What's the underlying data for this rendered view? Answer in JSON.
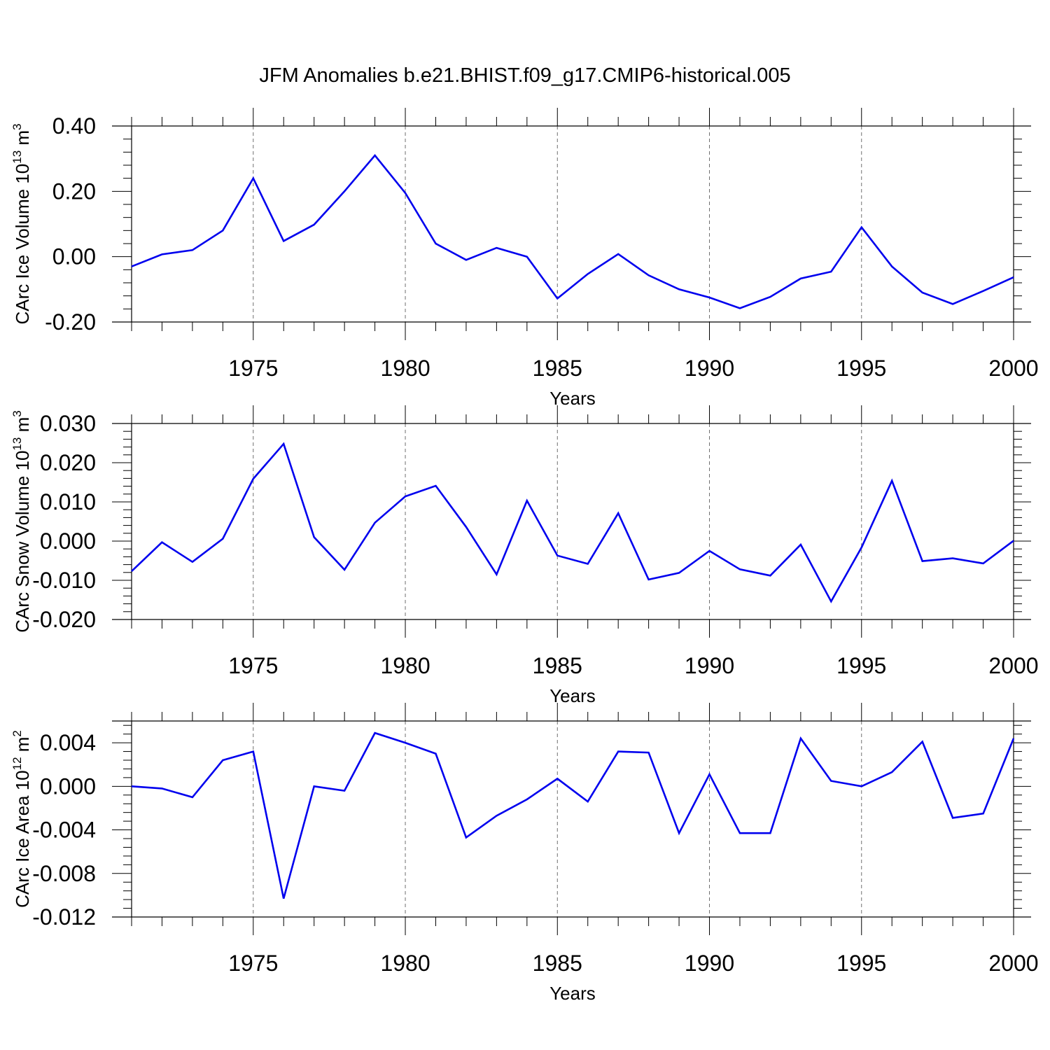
{
  "title": "JFM Anomalies b.e21.BHIST.f09_g17.CMIP6-historical.005",
  "chart_data": [
    {
      "type": "line",
      "ylabel": {
        "text": "CArc Ice Volume 10",
        "exp": "13",
        "unit": " m",
        "unit_exp": "3"
      },
      "xlabel": "Years",
      "ylim": [
        -0.2,
        0.4
      ],
      "yticks": [
        -0.2,
        0.0,
        0.2,
        0.4
      ],
      "ytick_labels": [
        "-0.20",
        "0.00",
        "0.20",
        "0.40"
      ],
      "xlim": [
        1971,
        2000
      ],
      "xticks": [
        1975,
        1980,
        1985,
        1990,
        1995,
        2000
      ],
      "xtick_labels": [
        "1975",
        "1980",
        "1985",
        "1990",
        "1995",
        "2000"
      ],
      "grid": "dashed vertical at major x ticks",
      "series": [
        {
          "name": "CArc Ice Volume",
          "color": "#0000ee",
          "x": [
            1971,
            1972,
            1973,
            1974,
            1975,
            1976,
            1977,
            1978,
            1979,
            1980,
            1981,
            1982,
            1983,
            1984,
            1985,
            1986,
            1987,
            1988,
            1989,
            1990,
            1991,
            1992,
            1993,
            1994,
            1995,
            1996,
            1997,
            1998,
            1999,
            2000
          ],
          "values": [
            -0.03,
            0.007,
            0.02,
            0.08,
            0.24,
            0.048,
            0.098,
            0.2,
            0.31,
            0.195,
            0.04,
            -0.01,
            0.027,
            0.0,
            -0.128,
            -0.053,
            0.008,
            -0.057,
            -0.1,
            -0.125,
            -0.158,
            -0.123,
            -0.067,
            -0.046,
            0.09,
            -0.03,
            -0.11,
            -0.145,
            -0.105,
            -0.063
          ]
        }
      ]
    },
    {
      "type": "line",
      "ylabel": {
        "text": "CArc Snow Volume 10",
        "exp": "13",
        "unit": " m",
        "unit_exp": "3"
      },
      "xlabel": "Years",
      "ylim": [
        -0.02,
        0.03
      ],
      "yticks": [
        -0.02,
        -0.01,
        0.0,
        0.01,
        0.02,
        0.03
      ],
      "ytick_labels": [
        "-0.020",
        "-0.010",
        "0.000",
        "0.010",
        "0.020",
        "0.030"
      ],
      "xlim": [
        1971,
        2000
      ],
      "xticks": [
        1975,
        1980,
        1985,
        1990,
        1995,
        2000
      ],
      "xtick_labels": [
        "1975",
        "1980",
        "1985",
        "1990",
        "1995",
        "2000"
      ],
      "grid": "dashed vertical at major x ticks",
      "series": [
        {
          "name": "CArc Snow Volume",
          "color": "#0000ee",
          "x": [
            1971,
            1972,
            1973,
            1974,
            1975,
            1976,
            1977,
            1978,
            1979,
            1980,
            1981,
            1982,
            1983,
            1984,
            1985,
            1986,
            1987,
            1988,
            1989,
            1990,
            1991,
            1992,
            1993,
            1994,
            1995,
            1996,
            1997,
            1998,
            1999,
            2000
          ],
          "values": [
            -0.0077,
            -0.0003,
            -0.0053,
            0.0006,
            0.0159,
            0.0248,
            0.001,
            -0.0073,
            0.0047,
            0.0114,
            0.0141,
            0.0036,
            -0.0085,
            0.0103,
            -0.0037,
            -0.0058,
            0.0071,
            -0.0098,
            -0.0081,
            -0.0025,
            -0.0072,
            -0.0088,
            -0.0009,
            -0.0154,
            -0.0016,
            0.0154,
            -0.0051,
            -0.0044,
            -0.0057,
            0.0001
          ]
        }
      ]
    },
    {
      "type": "line",
      "ylabel": {
        "text": "CArc Ice Area 10",
        "exp": "12",
        "unit": " m",
        "unit_exp": "2"
      },
      "xlabel": "Years",
      "ylim": [
        -0.012,
        0.006
      ],
      "yticks": [
        -0.012,
        -0.008,
        -0.004,
        0.0,
        0.004
      ],
      "ytick_labels": [
        "-0.012",
        "-0.008",
        "-0.004",
        "0.000",
        "0.004"
      ],
      "xlim": [
        1971,
        2000
      ],
      "xticks": [
        1975,
        1980,
        1985,
        1990,
        1995,
        2000
      ],
      "xtick_labels": [
        "1975",
        "1980",
        "1985",
        "1990",
        "1995",
        "2000"
      ],
      "grid": "dashed vertical at major x ticks",
      "series": [
        {
          "name": "CArc Ice Area",
          "color": "#0000ee",
          "x": [
            1971,
            1972,
            1973,
            1974,
            1975,
            1976,
            1977,
            1978,
            1979,
            1980,
            1981,
            1982,
            1983,
            1984,
            1985,
            1986,
            1987,
            1988,
            1989,
            1990,
            1991,
            1992,
            1993,
            1994,
            1995,
            1996,
            1997,
            1998,
            1999,
            2000
          ],
          "values": [
            0.0,
            -0.0002,
            -0.001,
            0.0024,
            0.0032,
            -0.0103,
            0.0,
            -0.0004,
            0.0049,
            0.004,
            0.003,
            -0.0047,
            -0.0027,
            -0.0012,
            0.0007,
            -0.0014,
            0.0032,
            0.0031,
            -0.0043,
            0.0011,
            -0.0043,
            -0.0043,
            0.0044,
            0.0005,
            0.0,
            0.0013,
            0.0041,
            -0.0029,
            -0.0025,
            0.0044
          ]
        }
      ]
    }
  ]
}
